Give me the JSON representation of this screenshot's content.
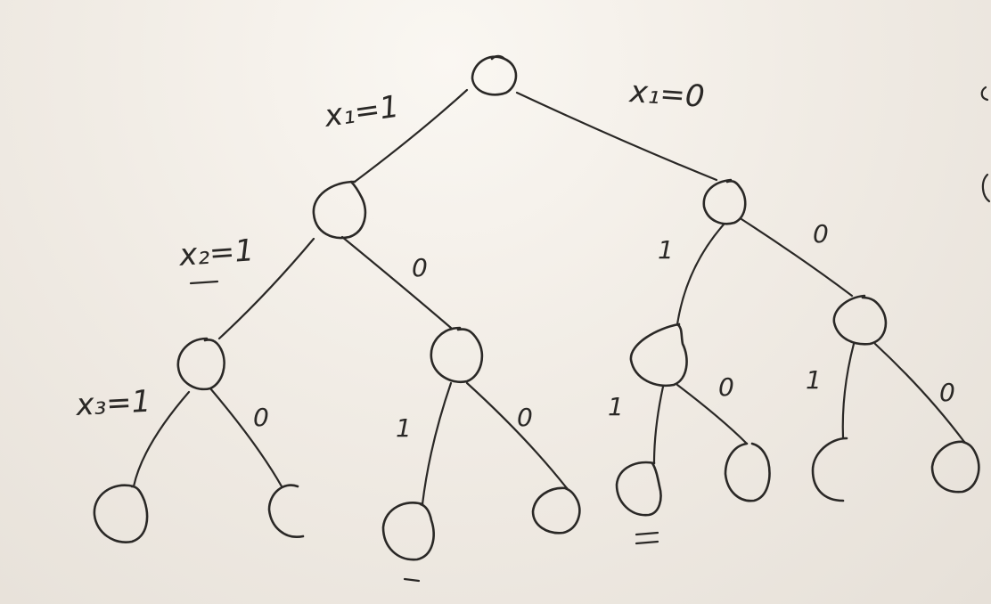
{
  "tree": {
    "edge_labels": {
      "root_left": "x₁=1",
      "root_right": "x₁=0",
      "l_left": "x₂=1",
      "l_right": "0",
      "r_left": "1",
      "r_right": "0",
      "ll_left": "x₃=1",
      "ll_right": "0",
      "lr_left": "1",
      "lr_right": "0",
      "rl_left": "1",
      "rl_right": "0",
      "rr_left": "1",
      "rr_right": "0"
    }
  },
  "colors": {
    "ink": "#2a2826",
    "board": "#efeae3"
  }
}
